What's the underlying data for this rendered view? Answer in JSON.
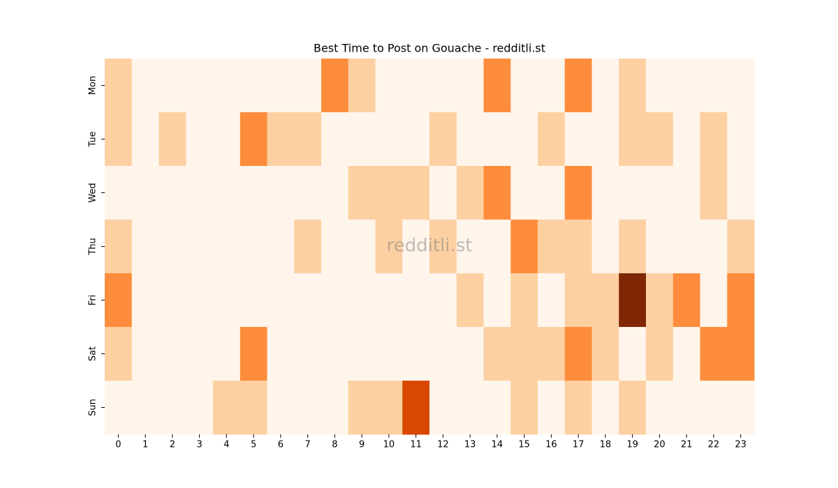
{
  "chart_data": {
    "type": "heatmap",
    "title": "Best Time to Post on Gouache - redditli.st",
    "watermark": "redditli.st",
    "x": [
      0,
      1,
      2,
      3,
      4,
      5,
      6,
      7,
      8,
      9,
      10,
      11,
      12,
      13,
      14,
      15,
      16,
      17,
      18,
      19,
      20,
      21,
      22,
      23
    ],
    "y": [
      "Mon",
      "Tue",
      "Wed",
      "Thu",
      "Fri",
      "Sat",
      "Sun"
    ],
    "values": [
      [
        1,
        0,
        0,
        0,
        0,
        0,
        0,
        0,
        2,
        1,
        0,
        0,
        0,
        0,
        2,
        0,
        0,
        2,
        0,
        1,
        0,
        0,
        0,
        0
      ],
      [
        1,
        0,
        1,
        0,
        0,
        2,
        1,
        1,
        0,
        0,
        0,
        0,
        1,
        0,
        0,
        0,
        1,
        0,
        0,
        1,
        1,
        0,
        1,
        0
      ],
      [
        0,
        0,
        0,
        0,
        0,
        0,
        0,
        0,
        0,
        1,
        1,
        1,
        0,
        1,
        2,
        0,
        0,
        2,
        0,
        0,
        0,
        0,
        1,
        0
      ],
      [
        1,
        0,
        0,
        0,
        0,
        0,
        0,
        1,
        0,
        0,
        1,
        0,
        1,
        0,
        0,
        2,
        1,
        1,
        0,
        1,
        0,
        0,
        0,
        1
      ],
      [
        2,
        0,
        0,
        0,
        0,
        0,
        0,
        0,
        0,
        0,
        0,
        0,
        0,
        1,
        0,
        1,
        0,
        1,
        1,
        4,
        1,
        2,
        0,
        2
      ],
      [
        1,
        0,
        0,
        0,
        0,
        2,
        0,
        0,
        0,
        0,
        0,
        0,
        0,
        0,
        1,
        1,
        1,
        2,
        1,
        0,
        1,
        0,
        2,
        2
      ],
      [
        0,
        0,
        0,
        0,
        1,
        1,
        0,
        0,
        0,
        1,
        1,
        3,
        0,
        0,
        0,
        1,
        0,
        1,
        0,
        1,
        0,
        0,
        0,
        0
      ]
    ],
    "colormap": [
      "#fff5eb",
      "#fdd0a2",
      "#fd8d3c",
      "#d94801",
      "#7f2704"
    ],
    "zlim": [
      0,
      4
    ]
  }
}
